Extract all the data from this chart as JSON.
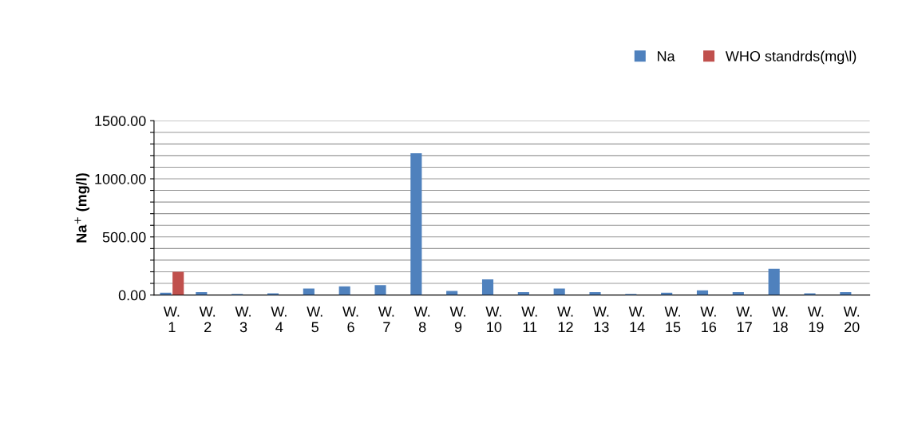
{
  "chart_data": {
    "type": "bar",
    "ylabel": "Na$^{+}$ (mg/l)",
    "categories": [
      "W.\n1",
      "W.\n2",
      "W.\n3",
      "W.\n4",
      "W.\n5",
      "W.\n6",
      "W.\n7",
      "W.\n8",
      "W.\n9",
      "W.\n10",
      "W.\n11",
      "W.\n12",
      "W.\n13",
      "W.\n14",
      "W.\n15",
      "W.\n16",
      "W.\n17",
      "W.\n18",
      "W.\n19",
      "W.\n20"
    ],
    "series": [
      {
        "name": "Na",
        "color": "#4f81bd",
        "values": [
          20,
          25,
          10,
          15,
          55,
          75,
          85,
          1220,
          35,
          135,
          25,
          55,
          25,
          10,
          20,
          40,
          25,
          225,
          15,
          25
        ]
      },
      {
        "name": "WHO standrds(mg\\l)",
        "color": "#c0504d",
        "values": [
          200,
          null,
          null,
          null,
          null,
          null,
          null,
          null,
          null,
          null,
          null,
          null,
          null,
          null,
          null,
          null,
          null,
          null,
          null,
          null
        ]
      }
    ],
    "ylim": [
      0,
      1500
    ],
    "yticks": [
      {
        "value": 0,
        "label": "0.00"
      },
      {
        "value": 100,
        "label": null
      },
      {
        "value": 200,
        "label": null
      },
      {
        "value": 300,
        "label": null
      },
      {
        "value": 400,
        "label": null
      },
      {
        "value": 500,
        "label": "500.00"
      },
      {
        "value": 600,
        "label": null
      },
      {
        "value": 700,
        "label": null
      },
      {
        "value": 800,
        "label": null
      },
      {
        "value": 900,
        "label": null
      },
      {
        "value": 1000,
        "label": "1000.00"
      },
      {
        "value": 1100,
        "label": null
      },
      {
        "value": 1200,
        "label": null
      },
      {
        "value": 1300,
        "label": null
      },
      {
        "value": 1400,
        "label": null
      },
      {
        "value": 1500,
        "label": "1500.00"
      }
    ],
    "grid": "y",
    "legend": "top right"
  }
}
